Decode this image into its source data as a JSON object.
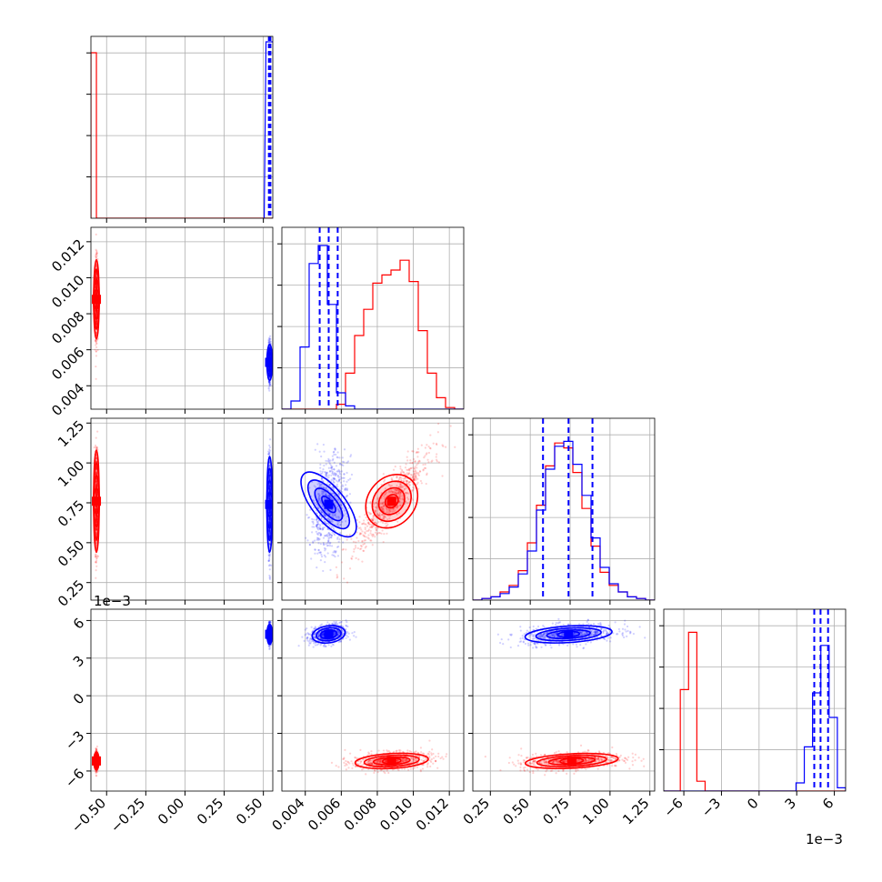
{
  "colors": {
    "series_a": "#ff0000",
    "series_b": "#0000ff",
    "grid": "#b0b0b0",
    "frame": "#000000"
  },
  "offset_text": {
    "panel_row3_y": "1e−3",
    "panel_col3_x": "1e−3"
  },
  "chart_data": {
    "type": "corner",
    "series": [
      {
        "name": "",
        "color": "#ff0000",
        "p0": {
          "center": -0.565,
          "spread": 0.004
        },
        "p1": {
          "center": 0.0088,
          "spread": 0.0011
        },
        "p2": {
          "center": 0.76,
          "spread": 0.16
        },
        "p3": {
          "center": -5.2,
          "spread": 0.35
        }
      },
      {
        "name": "",
        "color": "#0000ff",
        "p0": {
          "center": 0.54,
          "spread": 0.004,
          "quantiles": [
            0.535,
            0.54,
            0.545
          ]
        },
        "p1": {
          "center": 0.0053,
          "spread": 0.0005,
          "quantiles": [
            0.0048,
            0.0053,
            0.0058
          ]
        },
        "p2": {
          "center": 0.74,
          "spread": 0.15,
          "quantiles": [
            0.58,
            0.74,
            0.89
          ]
        },
        "p3": {
          "center": 4.9,
          "spread": 0.4,
          "quantiles": [
            4.4,
            4.9,
            5.5
          ]
        }
      }
    ],
    "hist_1d": {
      "p1": {
        "range": [
          0.0027,
          0.0128
        ],
        "bins": 20,
        "red": [
          0,
          0,
          0,
          0,
          0,
          0,
          0.03,
          0.22,
          0.45,
          0.61,
          0.77,
          0.82,
          0.85,
          0.91,
          0.78,
          0.48,
          0.22,
          0.07,
          0.01,
          0
        ],
        "blue": [
          0,
          0.05,
          0.38,
          0.89,
          1.0,
          0.64,
          0.1,
          0.02,
          0,
          0,
          0,
          0,
          0,
          0,
          0,
          0,
          0,
          0,
          0,
          0
        ]
      },
      "p2": {
        "range": [
          0.14,
          1.28
        ],
        "bins": 20,
        "red": [
          0,
          0.01,
          0.02,
          0.05,
          0.09,
          0.18,
          0.35,
          0.58,
          0.82,
          0.96,
          0.93,
          0.78,
          0.56,
          0.33,
          0.17,
          0.09,
          0.05,
          0.02,
          0.01,
          0
        ],
        "blue": [
          0,
          0.01,
          0.02,
          0.04,
          0.08,
          0.16,
          0.3,
          0.55,
          0.8,
          0.94,
          0.97,
          0.83,
          0.64,
          0.38,
          0.2,
          0.1,
          0.05,
          0.02,
          0.01,
          0
        ]
      },
      "p3": {
        "range": [
          -7.6,
          6.9
        ],
        "bins": 22,
        "red": [
          0,
          0,
          0.62,
          0.97,
          0.06,
          0,
          0,
          0,
          0,
          0,
          0,
          0,
          0,
          0,
          0,
          0,
          0,
          0,
          0,
          0,
          0,
          0
        ],
        "blue": [
          0,
          0,
          0,
          0,
          0,
          0,
          0,
          0,
          0,
          0,
          0,
          0,
          0,
          0,
          0,
          0,
          0.05,
          0.27,
          0.6,
          0.89,
          0.45,
          0.02
        ]
      }
    },
    "axes": {
      "p0": {
        "range": [
          -0.6,
          0.56
        ],
        "ticks": [
          -0.5,
          -0.25,
          0,
          0.25,
          0.5
        ],
        "labels": [
          "−0.50",
          "−0.25",
          "0.00",
          "0.25",
          "0.50"
        ]
      },
      "p1": {
        "range": [
          0.0027,
          0.0128
        ],
        "ticks": [
          0.004,
          0.006,
          0.008,
          0.01,
          0.012
        ],
        "labels": [
          "0.004",
          "0.006",
          "0.008",
          "0.010",
          "0.012"
        ]
      },
      "p2": {
        "range": [
          0.14,
          1.28
        ],
        "ticks": [
          0.25,
          0.5,
          0.75,
          1,
          1.25
        ],
        "labels": [
          "0.25",
          "0.50",
          "0.75",
          "1.00",
          "1.25"
        ]
      },
      "p3": {
        "range": [
          -7.6,
          6.9
        ],
        "ticks": [
          -6,
          -3,
          0,
          3,
          6
        ],
        "labels": [
          "−6",
          "−3",
          "0",
          "3",
          "6"
        ]
      }
    },
    "grid": true,
    "title": "",
    "xlabel": "",
    "ylabel": ""
  }
}
